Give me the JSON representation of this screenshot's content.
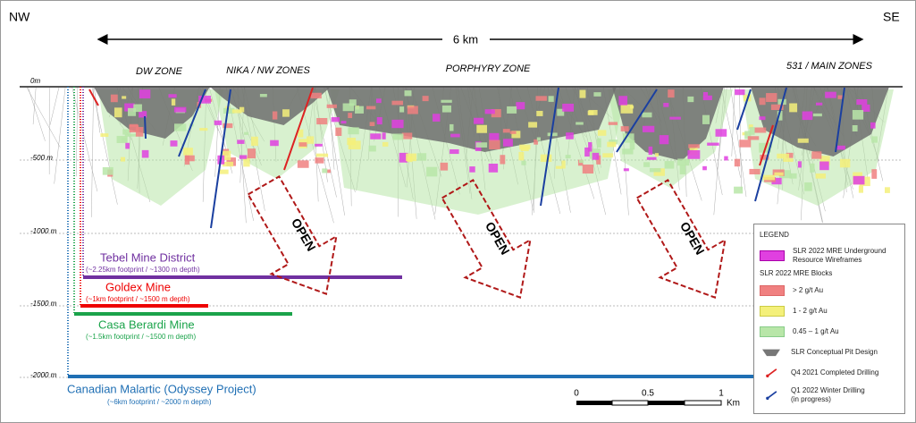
{
  "header": {
    "left": "NW",
    "right": "SE",
    "width": "6 km"
  },
  "zones": [
    "DW ZONE",
    "NIKA / NW ZONES",
    "PORPHYRY ZONE",
    "531 / MAIN ZONES"
  ],
  "depths": [
    "0m",
    "-500 m",
    "-1000 m",
    "-1500 m",
    "-2000 m"
  ],
  "open_labels": [
    "OPEN",
    "OPEN",
    "OPEN"
  ],
  "mines": [
    {
      "name": "Tebel Mine District",
      "footprint": "(~2.25km footprint / ~1300 m depth)"
    },
    {
      "name": "Goldex Mine",
      "footprint": "(~1km footprint / ~1500 m depth)"
    },
    {
      "name": "Casa Berardi Mine",
      "footprint": "(~1.5km footprint / ~1500 m depth)"
    },
    {
      "name": "Canadian Malartic (Odyssey Project)",
      "footprint": "(~6km footprint / ~2000 m depth)"
    }
  ],
  "scale": {
    "ticks": [
      "0",
      "0.5",
      "1"
    ],
    "unit": "Km"
  },
  "legend": {
    "title": "LEGEND",
    "wireframes": "SLR 2022 MRE Underground Resource Wireframes",
    "blocks_heading": "SLR 2022 MRE Blocks",
    "blocks": [
      "> 2 g/t Au",
      "1 - 2 g/t Au",
      "0.45 – 1 g/t Au"
    ],
    "pit": "SLR Conceptual Pit Design",
    "q4": "Q4 2021 Completed Drilling",
    "q1": "Q1 2022 Winter Drilling (in progress)"
  }
}
